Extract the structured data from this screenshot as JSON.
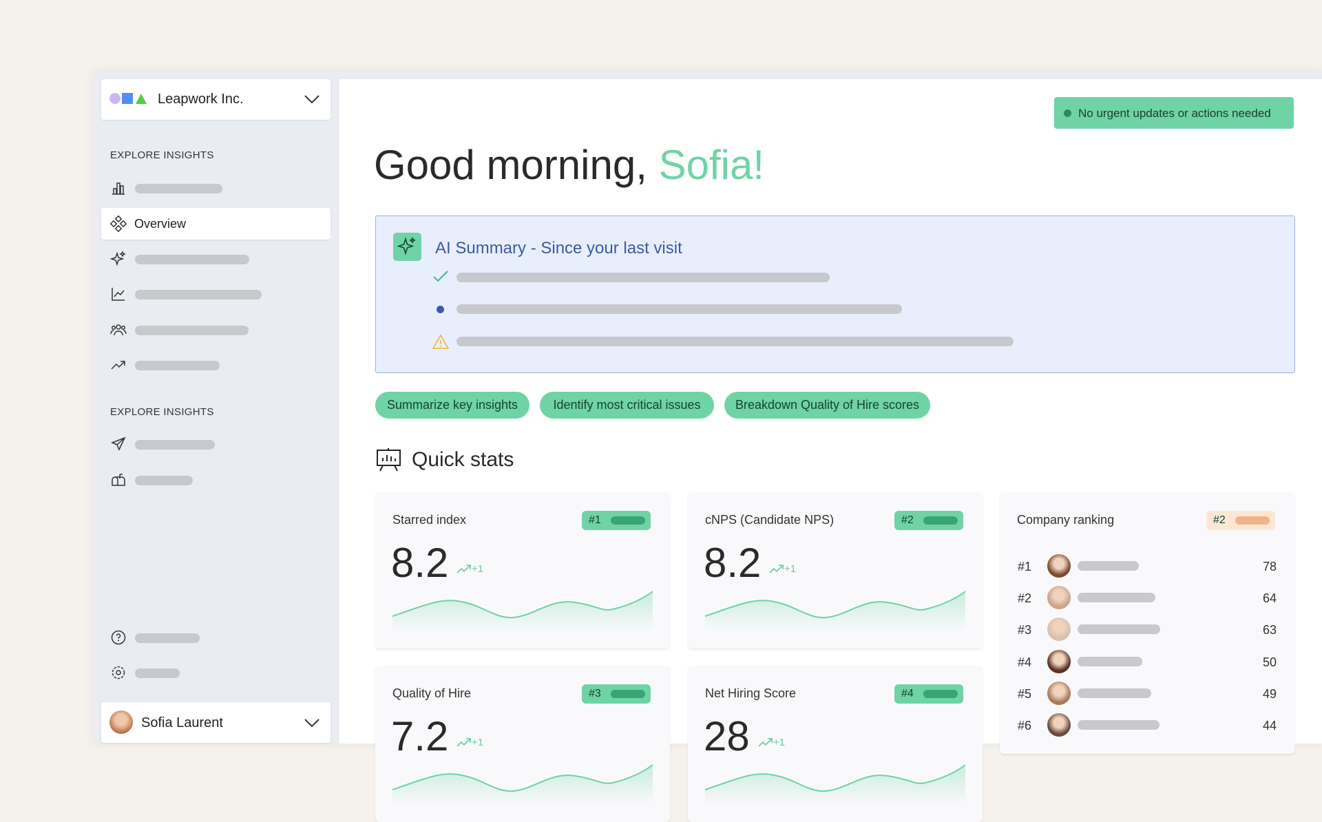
{
  "sidebar": {
    "workspace": "Leapwork Inc.",
    "sections": [
      "EXPLORE INSIGHTS",
      "EXPLORE INSIGHTS"
    ],
    "active_item": "Overview",
    "user": "Sofia Laurent"
  },
  "header": {
    "status": "No urgent updates or actions needed",
    "greeting": "Good morning,",
    "name": "Sofia!"
  },
  "ai_summary": {
    "title": "AI Summary - Since your last visit"
  },
  "chips": [
    "Summarize key insights",
    "Identify most critical issues",
    "Breakdown Quality of Hire scores"
  ],
  "quick_stats": {
    "title": "Quick stats",
    "cards": [
      {
        "label": "Starred index",
        "rank": "#1",
        "value": 8.2,
        "delta": "+1"
      },
      {
        "label": "cNPS (Candidate NPS)",
        "rank": "#2",
        "value": 8.2,
        "delta": "+1"
      },
      {
        "label": "Quality of Hire",
        "rank": "#3",
        "value": 7.2,
        "delta": "+1"
      },
      {
        "label": "Net Hiring Score",
        "rank": "#4",
        "value": 28,
        "delta": "+1"
      }
    ],
    "ranking": {
      "label": "Company ranking",
      "rank": "#2",
      "rows": [
        {
          "rank": "#1",
          "score": 78
        },
        {
          "rank": "#2",
          "score": 64
        },
        {
          "rank": "#3",
          "score": 63
        },
        {
          "rank": "#4",
          "score": 50
        },
        {
          "rank": "#5",
          "score": 49
        },
        {
          "rank": "#6",
          "score": 44
        }
      ]
    }
  }
}
